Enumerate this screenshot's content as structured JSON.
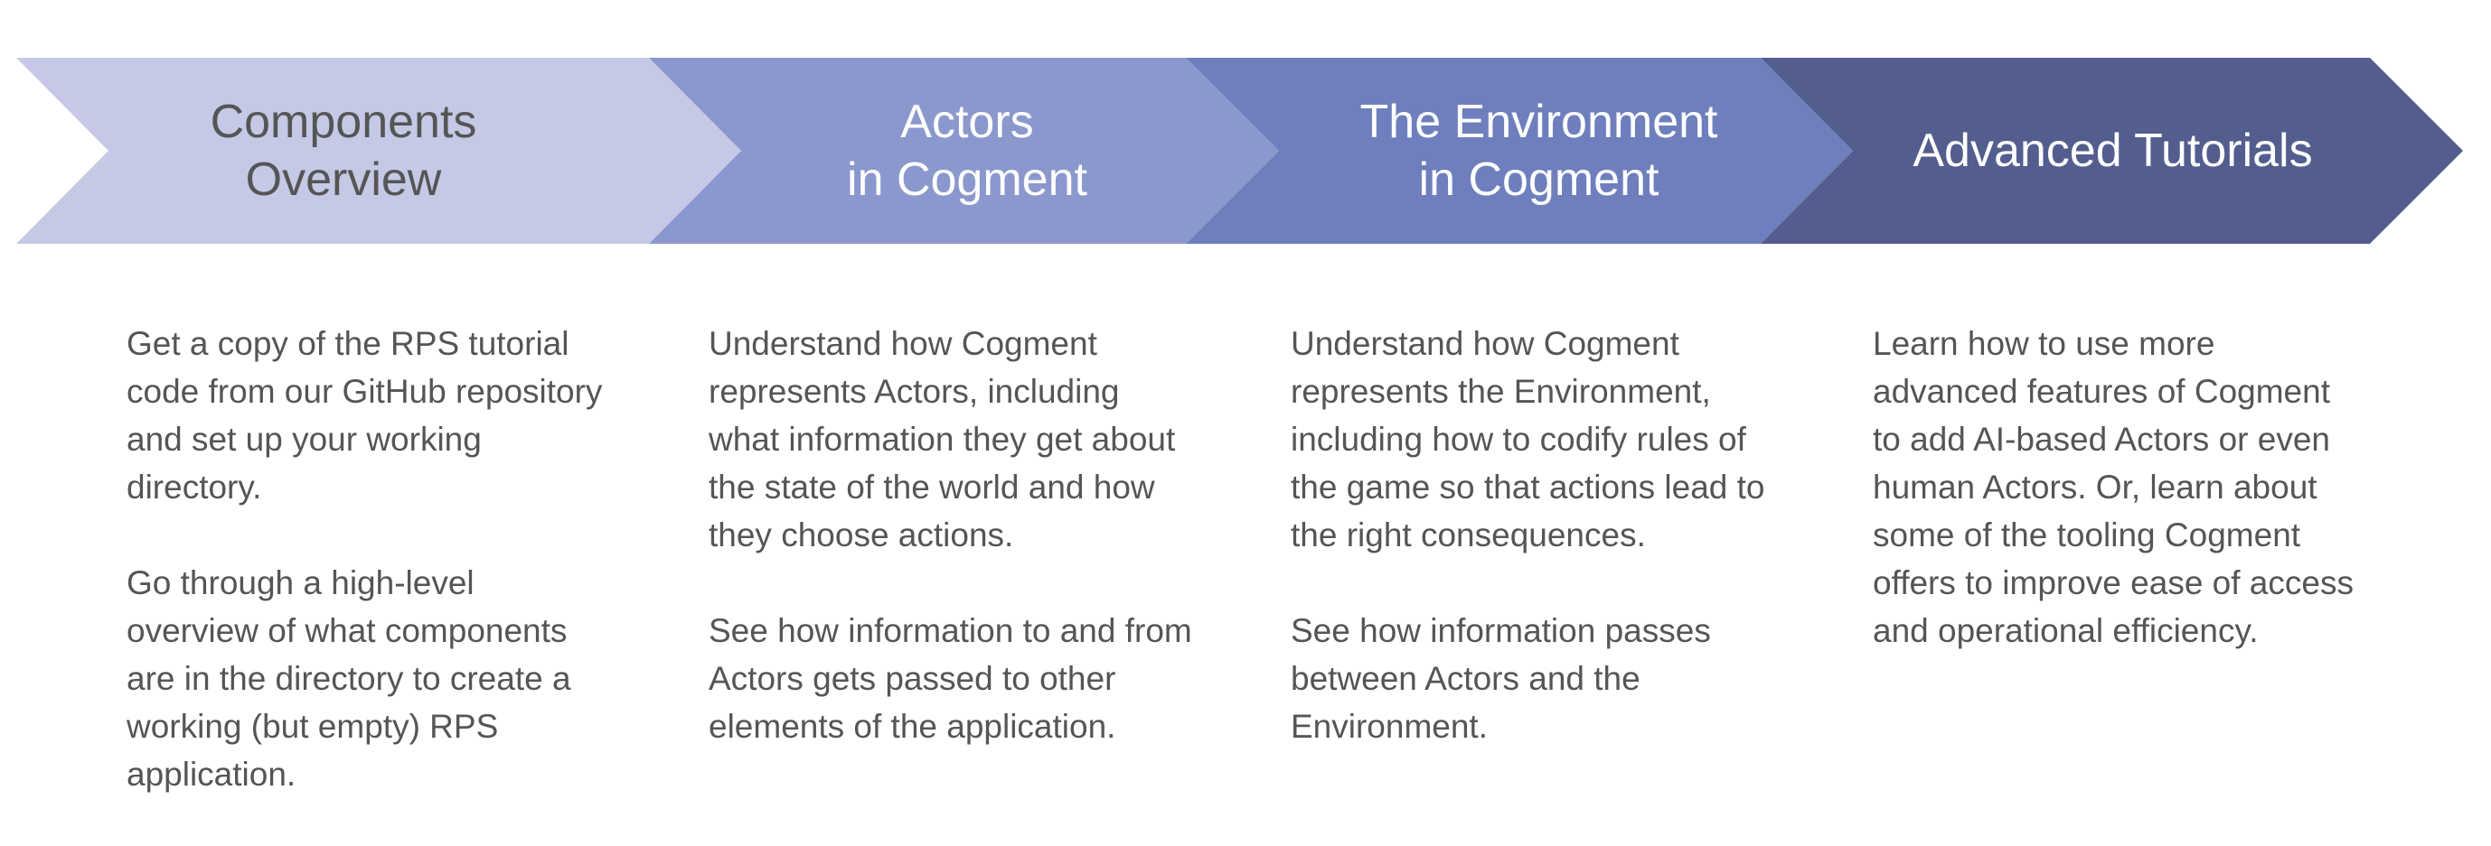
{
  "steps": [
    {
      "title": "Components\nOverview",
      "fill": "#c5c9e6",
      "title_color": "#555555",
      "paragraphs": [
        "Get a copy of the RPS tutorial code from our GitHub repository and set up your working directory.",
        "Go through a high-level overview of what components are in the directory to create a working (but empty) RPS application."
      ]
    },
    {
      "title": "Actors\nin Cogment",
      "fill": "#8b98cd",
      "title_color": "#ffffff",
      "paragraphs": [
        "Understand how Cogment represents Actors, including what information they get about the state of the world and how they choose actions.",
        "See how information to and from Actors gets passed to other elements of the application."
      ]
    },
    {
      "title": "The Environment\nin Cogment",
      "fill": "#6f7fbd",
      "title_color": "#ffffff",
      "paragraphs": [
        "Understand how Cogment represents the Environment, including how to codify rules of the game so that actions lead to the right consequences.",
        "See how information passes between Actors and the Environment."
      ]
    },
    {
      "title": "Advanced Tutorials",
      "fill": "#535d8e",
      "title_color": "#ffffff",
      "paragraphs": [
        "Learn how to use more advanced features of Cogment to add AI-based Actors or even human Actors. Or, learn about some of the tooling Cogment offers to improve ease of access and operational efficiency."
      ]
    }
  ]
}
